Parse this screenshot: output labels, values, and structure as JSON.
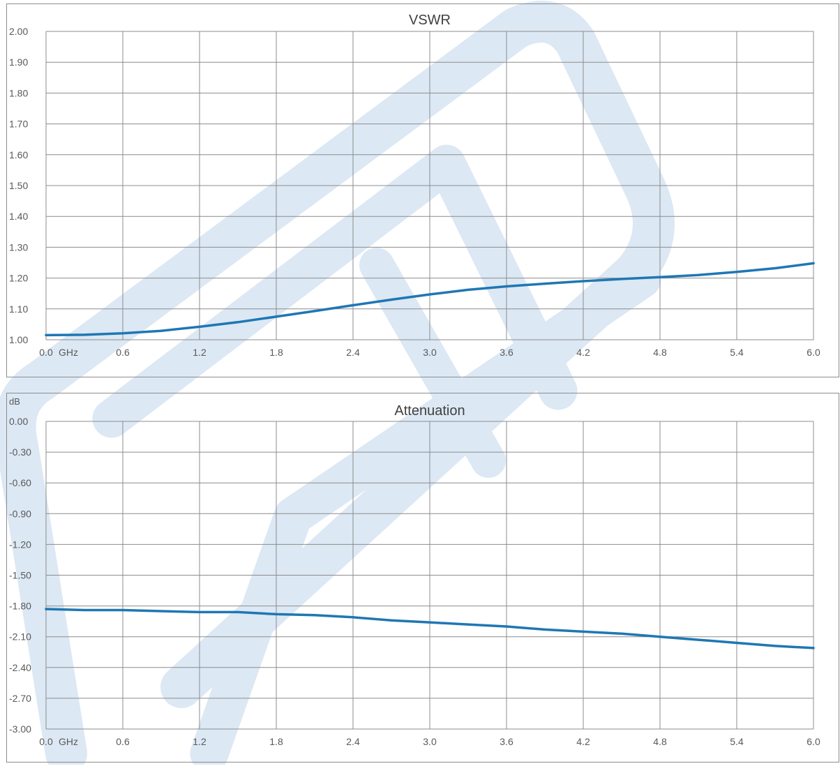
{
  "watermark": {
    "color": "#dce8f4"
  },
  "chart_data": [
    {
      "type": "line",
      "title": "VSWR",
      "ylabel": "",
      "xlabel": "GHz",
      "xlim": [
        0,
        6
      ],
      "ylim": [
        1.0,
        2.0
      ],
      "x_ticks": [
        "0.0",
        "0.6",
        "1.2",
        "1.8",
        "2.4",
        "3.0",
        "3.6",
        "4.2",
        "4.8",
        "5.4",
        "6.0"
      ],
      "y_ticks": [
        "2.00",
        "1.90",
        "1.80",
        "1.70",
        "1.60",
        "1.50",
        "1.40",
        "1.30",
        "1.20",
        "1.10",
        "1.00"
      ],
      "grid": true,
      "line_color": "#1f77b4",
      "series": [
        {
          "x": [
            0.0,
            0.3,
            0.6,
            0.9,
            1.2,
            1.5,
            1.8,
            2.1,
            2.4,
            2.7,
            3.0,
            3.3,
            3.6,
            3.9,
            4.2,
            4.5,
            4.8,
            5.1,
            5.4,
            5.7,
            6.0
          ],
          "values": [
            1.015,
            1.016,
            1.021,
            1.029,
            1.042,
            1.057,
            1.075,
            1.093,
            1.112,
            1.13,
            1.147,
            1.162,
            1.173,
            1.182,
            1.19,
            1.197,
            1.203,
            1.21,
            1.22,
            1.232,
            1.248
          ]
        }
      ]
    },
    {
      "type": "line",
      "title": "Attenuation",
      "ylabel": "dB",
      "xlabel": "GHz",
      "xlim": [
        0,
        6
      ],
      "ylim": [
        -3.0,
        0.0
      ],
      "x_ticks": [
        "0.0",
        "0.6",
        "1.2",
        "1.8",
        "2.4",
        "3.0",
        "3.6",
        "4.2",
        "4.8",
        "5.4",
        "6.0"
      ],
      "y_ticks": [
        "0.00",
        "-0.30",
        "-0.60",
        "-0.90",
        "-1.20",
        "-1.50",
        "-1.80",
        "-2.10",
        "-2.40",
        "-2.70",
        "-3.00"
      ],
      "grid": true,
      "line_color": "#1f77b4",
      "series": [
        {
          "x": [
            0.0,
            0.3,
            0.6,
            0.9,
            1.2,
            1.5,
            1.8,
            2.1,
            2.4,
            2.7,
            3.0,
            3.3,
            3.6,
            3.9,
            4.2,
            4.5,
            4.8,
            5.1,
            5.4,
            5.7,
            6.0
          ],
          "values": [
            -1.83,
            -1.84,
            -1.84,
            -1.85,
            -1.86,
            -1.86,
            -1.88,
            -1.89,
            -1.91,
            -1.94,
            -1.96,
            -1.98,
            -2.0,
            -2.03,
            -2.05,
            -2.07,
            -2.1,
            -2.13,
            -2.16,
            -2.19,
            -2.21
          ]
        }
      ]
    }
  ]
}
